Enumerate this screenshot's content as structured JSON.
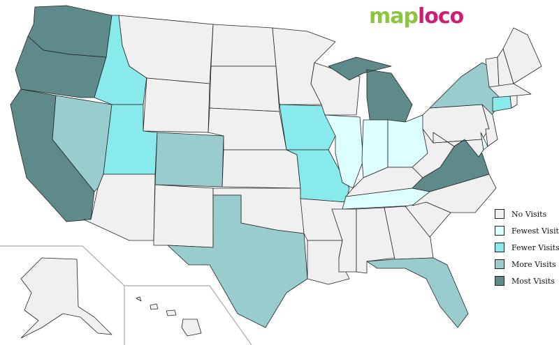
{
  "logo": {
    "part1": "map",
    "part2": "loco"
  },
  "levels": {
    "none": {
      "label": "No Visits",
      "color": "#f0f0f0"
    },
    "fewest": {
      "label": "Fewest Visits",
      "color": "#dcfefe"
    },
    "fewer": {
      "label": "Fewer Visits",
      "color": "#88eaea"
    },
    "more": {
      "label": "More Visits",
      "color": "#99cccc"
    },
    "most": {
      "label": "Most Visits",
      "color": "#5f8a8a"
    }
  },
  "legend_order": [
    "none",
    "fewest",
    "fewer",
    "more",
    "most"
  ],
  "states": {
    "WA": "most",
    "OR": "most",
    "CA": "most",
    "MI": "most",
    "VA": "most",
    "NV": "more",
    "CO": "more",
    "TX": "more",
    "FL": "more",
    "NY": "more",
    "ID": "fewer",
    "UT": "fewer",
    "IA": "fewer",
    "MO": "fewer",
    "CT": "fewer",
    "IL": "fewest",
    "IN": "fewest",
    "OH": "fewest",
    "TN": "fewest",
    "DE": "fewest",
    "MT": "none",
    "WY": "none",
    "AZ": "none",
    "NM": "none",
    "ND": "none",
    "SD": "none",
    "NE": "none",
    "KS": "none",
    "OK": "none",
    "MN": "none",
    "AR": "none",
    "LA": "none",
    "WI": "none",
    "KY": "none",
    "MS": "none",
    "AL": "none",
    "GA": "none",
    "SC": "none",
    "NC": "none",
    "WV": "none",
    "PA": "none",
    "NJ": "none",
    "MD": "none",
    "VT": "none",
    "NH": "none",
    "ME": "none",
    "MA": "none",
    "RI": "none",
    "AK": "none",
    "HI": "none"
  }
}
